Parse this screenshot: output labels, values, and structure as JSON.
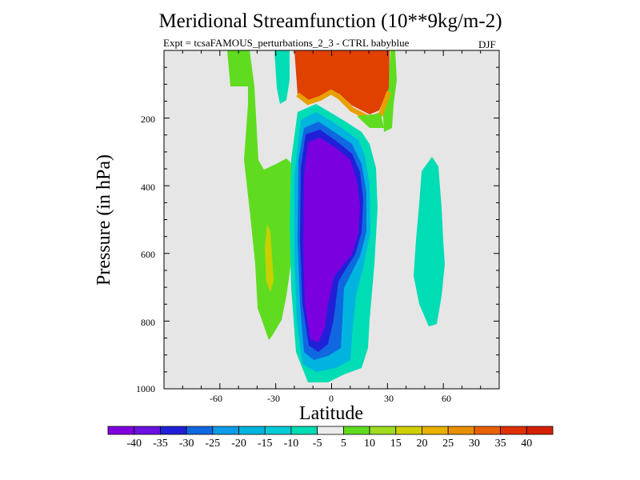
{
  "chart_data": {
    "type": "heatmap",
    "title": "Meridional Streamfunction (10**9kg/m-2)",
    "subtitle_left": "Expt = tcsaFAMOUS_perturbations_2_3 - CTRL babyblue",
    "subtitle_right": "DJF",
    "xlabel": "Latitude",
    "ylabel": "Pressure (in hPa)",
    "xlim": [
      -90,
      90
    ],
    "ylim": [
      1000,
      0
    ],
    "x_ticks": [
      -60,
      -30,
      0,
      30,
      60
    ],
    "x_tick_labels": [
      "-60",
      "-30",
      "0",
      "30",
      "60"
    ],
    "y_ticks": [
      200,
      400,
      600,
      800,
      1000
    ],
    "y_tick_labels": [
      "200",
      "400",
      "600",
      "800",
      "1000"
    ],
    "background_color": "#e6e6e6",
    "colorbar": {
      "labels": [
        "-40",
        "-35",
        "-30",
        "-25",
        "-20",
        "-15",
        "-10",
        "-5",
        "5",
        "10",
        "15",
        "20",
        "25",
        "30",
        "35",
        "40"
      ],
      "colors": [
        "#8000e0",
        "#6a10e0",
        "#2020d8",
        "#1068e0",
        "#0a9ce8",
        "#00b4e0",
        "#00ccd8",
        "#00dcb4",
        "#ececec",
        "#60dc20",
        "#a0dc20",
        "#d0d000",
        "#e8b000",
        "#e89000",
        "#e86000",
        "#e03000",
        "#d42000"
      ]
    },
    "features": [
      {
        "value_range": "-40",
        "color": "#7b00e0",
        "region": "Southern Hemisphere Hadley cell core, ~15S to 18N, 230-930 hPa"
      },
      {
        "value_range": "10 to 15",
        "color": "#60dc20",
        "region": "band near 30S-40S, 150-830 hPa"
      },
      {
        "value_range": "35 to 40",
        "color": "#e03000",
        "region": "upper troposphere, 10S-25N, above 130 hPa"
      },
      {
        "value_range": "-10 to -5",
        "color": "#00dcb4",
        "region": "around 45N-60N, 300-800 hPa"
      }
    ]
  }
}
